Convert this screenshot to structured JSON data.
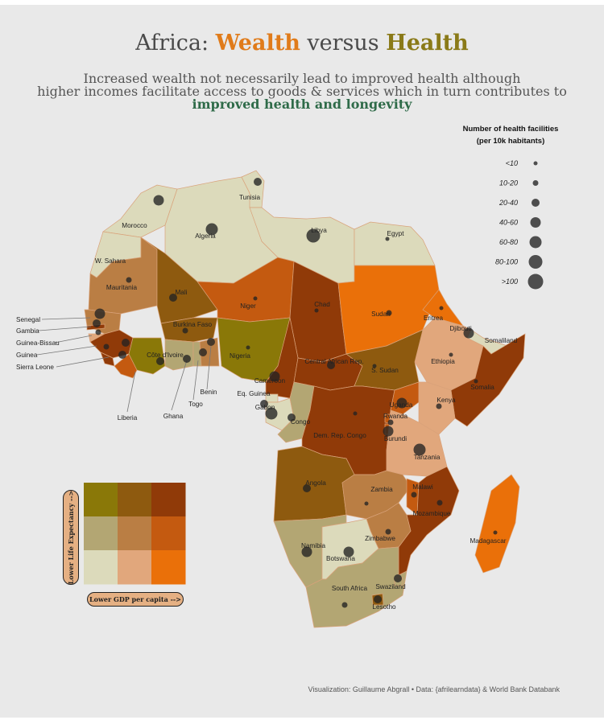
{
  "title": {
    "prefix": "Africa: ",
    "wealth": "Wealth",
    "middle": " versus ",
    "health": "Health"
  },
  "subtitle": {
    "line1": "Increased wealth not necessarily lead to improved health although",
    "line2": "higher incomes facilitate access to goods & services which in turn contributes to",
    "highlight": "improved health and longevity"
  },
  "legend": {
    "title_line1": "Number of health facilities",
    "title_line2": "(per 10k habitants)",
    "classes": [
      "<10",
      "10-20",
      "20-40",
      "40-60",
      "60-80",
      "80-100",
      ">100"
    ]
  },
  "bivariate": {
    "y_label": "Lower Life Expectancy -->",
    "x_label": "Lower GDP per capita -->",
    "colors": [
      [
        "#8a7808",
        "#8e5a0f",
        "#903a08"
      ],
      [
        "#b3a673",
        "#ba7e44",
        "#c45a10"
      ],
      [
        "#dcdabb",
        "#e1a77c",
        "#ea7009"
      ]
    ]
  },
  "countries": [
    {
      "name": "Tunisia",
      "size_class": 2
    },
    {
      "name": "Morocco",
      "size_class": 3
    },
    {
      "name": "Algeria",
      "size_class": 4
    },
    {
      "name": "Libya",
      "size_class": 5
    },
    {
      "name": "Egypt",
      "size_class": 0
    },
    {
      "name": "W. Sahara",
      "size_class": null
    },
    {
      "name": "Mauritania",
      "size_class": 1
    },
    {
      "name": "Mali",
      "size_class": 2
    },
    {
      "name": "Niger",
      "size_class": 0
    },
    {
      "name": "Chad",
      "size_class": 0
    },
    {
      "name": "Sudan",
      "size_class": 1
    },
    {
      "name": "Eritrea",
      "size_class": 0
    },
    {
      "name": "Djibouti",
      "size_class": 3
    },
    {
      "name": "Somaliland",
      "size_class": null
    },
    {
      "name": "Senegal",
      "size_class": 3
    },
    {
      "name": "Gambia",
      "size_class": 2
    },
    {
      "name": "Guinea-Bissau",
      "size_class": 1
    },
    {
      "name": "Guinea",
      "size_class": 1
    },
    {
      "name": "Sierra Leone",
      "size_class": 2
    },
    {
      "name": "Burkina Faso",
      "size_class": 1
    },
    {
      "name": "Côte d'Ivoire",
      "size_class": 2
    },
    {
      "name": "Ghana",
      "size_class": 2
    },
    {
      "name": "Togo",
      "size_class": 2
    },
    {
      "name": "Benin",
      "size_class": 2
    },
    {
      "name": "Nigeria",
      "size_class": 0
    },
    {
      "name": "Liberia",
      "size_class": 2
    },
    {
      "name": "Central African Rep.",
      "size_class": 2
    },
    {
      "name": "S. Sudan",
      "size_class": 0
    },
    {
      "name": "Ethiopia",
      "size_class": 0
    },
    {
      "name": "Somalia",
      "size_class": 0
    },
    {
      "name": "Cameroon",
      "size_class": 3
    },
    {
      "name": "Eq. Guinea",
      "size_class": 2
    },
    {
      "name": "Gabon",
      "size_class": 4
    },
    {
      "name": "Congo",
      "size_class": 2
    },
    {
      "name": "Dem. Rep. Congo",
      "size_class": 0
    },
    {
      "name": "Uganda",
      "size_class": 3
    },
    {
      "name": "Kenya",
      "size_class": 1
    },
    {
      "name": "Rwanda",
      "size_class": 1
    },
    {
      "name": "Burundi",
      "size_class": 3
    },
    {
      "name": "Tanzania",
      "size_class": 4
    },
    {
      "name": "Angola",
      "size_class": 2
    },
    {
      "name": "Zambia",
      "size_class": 0
    },
    {
      "name": "Malawi",
      "size_class": 1
    },
    {
      "name": "Mozambique",
      "size_class": 1
    },
    {
      "name": "Madagascar",
      "size_class": 0
    },
    {
      "name": "Zimbabwe",
      "size_class": 1
    },
    {
      "name": "Namibia",
      "size_class": 3
    },
    {
      "name": "Botswana",
      "size_class": 3
    },
    {
      "name": "South Africa",
      "size_class": 1
    },
    {
      "name": "Swaziland",
      "size_class": 2
    },
    {
      "name": "Lesotho",
      "size_class": 2
    }
  ],
  "caption": "Visualization: Guillaume Abgrall • Data: {afrilearndata} & World Bank Databank"
}
